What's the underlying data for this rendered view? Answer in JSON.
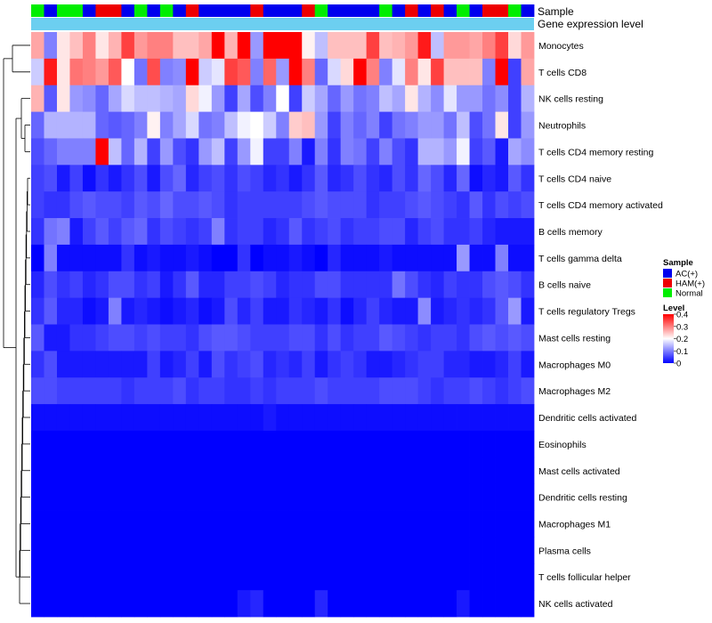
{
  "chart_data": {
    "type": "heatmap",
    "title": "",
    "annotation_labels": {
      "sample": "Sample",
      "expression": "Gene expression level"
    },
    "rows": [
      "Monocytes",
      "T cells CD8",
      "NK cells resting",
      "Neutrophils",
      "T cells CD4 memory resting",
      "T cells CD4 naive",
      "T cells CD4 memory activated",
      "B cells memory",
      "T cells gamma delta",
      "B cells naive",
      "T cells regulatory  Tregs",
      "Mast cells resting",
      "Macrophages M0",
      "Macrophages M2",
      "Dendritic cells activated",
      "Eosinophils",
      "Mast cells activated",
      "Dendritic cells resting",
      "Macrophages M1",
      "Plasma cells",
      "T cells follicular helper",
      "NK cells activated"
    ],
    "samples": [
      "N",
      "A",
      "N",
      "N",
      "A",
      "H",
      "H",
      "A",
      "N",
      "A",
      "N",
      "A",
      "H",
      "A",
      "A",
      "A",
      "A",
      "H",
      "A",
      "A",
      "A",
      "H",
      "N",
      "A",
      "A",
      "A",
      "A",
      "N",
      "A",
      "H",
      "A",
      "H",
      "A",
      "N",
      "A",
      "H",
      "H",
      "N",
      "A"
    ],
    "values": [
      [
        0.27,
        0.1,
        0.22,
        0.25,
        0.3,
        0.22,
        0.26,
        0.35,
        0.28,
        0.3,
        0.3,
        0.25,
        0.25,
        0.27,
        0.41,
        0.26,
        0.44,
        0.12,
        0.45,
        0.45,
        0.45,
        0.21,
        0.15,
        0.25,
        0.25,
        0.25,
        0.35,
        0.25,
        0.26,
        0.28,
        0.38,
        0.15,
        0.28,
        0.28,
        0.27,
        0.3,
        0.35,
        0.23,
        0.28
      ],
      [
        0.16,
        0.38,
        0.22,
        0.31,
        0.3,
        0.28,
        0.33,
        0.2,
        0.09,
        0.34,
        0.1,
        0.11,
        0.42,
        0.16,
        0.18,
        0.35,
        0.33,
        0.1,
        0.32,
        0.12,
        0.42,
        0.3,
        0.08,
        0.17,
        0.23,
        0.43,
        0.3,
        0.1,
        0.18,
        0.3,
        0.22,
        0.35,
        0.25,
        0.25,
        0.25,
        0.1,
        0.41,
        0.05,
        0.27
      ],
      [
        0.26,
        0.07,
        0.22,
        0.12,
        0.11,
        0.08,
        0.13,
        0.17,
        0.15,
        0.15,
        0.14,
        0.13,
        0.23,
        0.19,
        0.12,
        0.05,
        0.13,
        0.06,
        0.1,
        0.2,
        0.05,
        0.16,
        0.13,
        0.08,
        0.12,
        0.09,
        0.1,
        0.15,
        0.13,
        0.22,
        0.14,
        0.11,
        0.18,
        0.12,
        0.12,
        0.09,
        0.11,
        0.05,
        0.14
      ],
      [
        0.08,
        0.14,
        0.14,
        0.14,
        0.14,
        0.08,
        0.07,
        0.08,
        0.1,
        0.21,
        0.1,
        0.13,
        0.17,
        0.09,
        0.1,
        0.15,
        0.19,
        0.2,
        0.16,
        0.1,
        0.24,
        0.25,
        0.12,
        0.05,
        0.1,
        0.08,
        0.1,
        0.05,
        0.09,
        0.1,
        0.12,
        0.12,
        0.09,
        0.15,
        0.06,
        0.09,
        0.22,
        0.05,
        0.12
      ],
      [
        0.06,
        0.08,
        0.1,
        0.1,
        0.1,
        0.45,
        0.15,
        0.08,
        0.14,
        0.05,
        0.12,
        0.06,
        0.04,
        0.12,
        0.15,
        0.05,
        0.12,
        0.19,
        0.05,
        0.05,
        0.1,
        0.02,
        0.1,
        0.04,
        0.1,
        0.09,
        0.05,
        0.1,
        0.06,
        0.04,
        0.14,
        0.14,
        0.12,
        0.19,
        0.05,
        0.07,
        0.02,
        0.13,
        0.11
      ],
      [
        0.05,
        0.06,
        0.02,
        0.05,
        0.01,
        0.04,
        0.02,
        0.04,
        0.06,
        0.02,
        0.06,
        0.08,
        0.03,
        0.05,
        0.06,
        0.04,
        0.06,
        0.05,
        0.03,
        0.04,
        0.02,
        0.04,
        0.07,
        0.03,
        0.04,
        0.06,
        0.04,
        0.03,
        0.06,
        0.04,
        0.08,
        0.06,
        0.03,
        0.08,
        0.01,
        0.03,
        0.02,
        0.07,
        0.04
      ],
      [
        0.05,
        0.04,
        0.04,
        0.06,
        0.07,
        0.06,
        0.06,
        0.05,
        0.07,
        0.06,
        0.08,
        0.06,
        0.06,
        0.07,
        0.06,
        0.04,
        0.05,
        0.05,
        0.05,
        0.05,
        0.05,
        0.06,
        0.07,
        0.06,
        0.06,
        0.06,
        0.04,
        0.05,
        0.05,
        0.06,
        0.07,
        0.06,
        0.05,
        0.04,
        0.07,
        0.04,
        0.06,
        0.05,
        0.06
      ],
      [
        0.04,
        0.09,
        0.1,
        0.02,
        0.05,
        0.07,
        0.05,
        0.07,
        0.08,
        0.04,
        0.06,
        0.05,
        0.04,
        0.05,
        0.1,
        0.04,
        0.05,
        0.05,
        0.03,
        0.04,
        0.07,
        0.04,
        0.05,
        0.06,
        0.04,
        0.05,
        0.05,
        0.06,
        0.06,
        0.03,
        0.05,
        0.06,
        0.04,
        0.04,
        0.05,
        0.03,
        0.02,
        0.02,
        0.02
      ],
      [
        0.0,
        0.1,
        0.01,
        0.01,
        0.01,
        0.01,
        0.01,
        0.04,
        0.01,
        0.02,
        0.01,
        0.01,
        0.02,
        0.01,
        0.0,
        0.0,
        0.04,
        0.0,
        0.01,
        0.01,
        0.02,
        0.01,
        0.0,
        0.03,
        0.01,
        0.01,
        0.01,
        0.02,
        0.01,
        0.01,
        0.01,
        0.01,
        0.01,
        0.12,
        0.01,
        0.01,
        0.1,
        0.01,
        0.01
      ],
      [
        0.03,
        0.06,
        0.04,
        0.05,
        0.03,
        0.04,
        0.06,
        0.06,
        0.04,
        0.05,
        0.02,
        0.04,
        0.07,
        0.03,
        0.03,
        0.05,
        0.05,
        0.06,
        0.05,
        0.03,
        0.04,
        0.04,
        0.06,
        0.06,
        0.04,
        0.04,
        0.04,
        0.04,
        0.09,
        0.06,
        0.04,
        0.03,
        0.05,
        0.04,
        0.04,
        0.06,
        0.07,
        0.06,
        0.04
      ],
      [
        0.04,
        0.07,
        0.03,
        0.03,
        0.01,
        0.02,
        0.1,
        0.02,
        0.03,
        0.02,
        0.01,
        0.02,
        0.03,
        0.01,
        0.02,
        0.06,
        0.03,
        0.05,
        0.02,
        0.02,
        0.04,
        0.03,
        0.02,
        0.04,
        0.01,
        0.03,
        0.05,
        0.03,
        0.02,
        0.02,
        0.11,
        0.02,
        0.03,
        0.04,
        0.03,
        0.04,
        0.07,
        0.12,
        0.02
      ],
      [
        0.07,
        0.02,
        0.02,
        0.04,
        0.04,
        0.05,
        0.06,
        0.06,
        0.05,
        0.06,
        0.05,
        0.05,
        0.04,
        0.06,
        0.07,
        0.07,
        0.06,
        0.05,
        0.05,
        0.05,
        0.06,
        0.06,
        0.04,
        0.06,
        0.04,
        0.05,
        0.05,
        0.07,
        0.06,
        0.05,
        0.04,
        0.05,
        0.05,
        0.04,
        0.06,
        0.07,
        0.06,
        0.07,
        0.06
      ],
      [
        0.04,
        0.06,
        0.02,
        0.02,
        0.02,
        0.02,
        0.02,
        0.02,
        0.02,
        0.05,
        0.02,
        0.03,
        0.05,
        0.02,
        0.06,
        0.04,
        0.05,
        0.06,
        0.03,
        0.04,
        0.03,
        0.05,
        0.02,
        0.04,
        0.05,
        0.04,
        0.02,
        0.02,
        0.03,
        0.04,
        0.05,
        0.05,
        0.03,
        0.03,
        0.02,
        0.02,
        0.03,
        0.05,
        0.02
      ],
      [
        0.06,
        0.06,
        0.05,
        0.05,
        0.05,
        0.05,
        0.05,
        0.04,
        0.05,
        0.05,
        0.05,
        0.06,
        0.04,
        0.05,
        0.05,
        0.04,
        0.04,
        0.05,
        0.04,
        0.05,
        0.05,
        0.05,
        0.06,
        0.05,
        0.05,
        0.05,
        0.05,
        0.06,
        0.06,
        0.06,
        0.05,
        0.04,
        0.05,
        0.05,
        0.06,
        0.05,
        0.04,
        0.05,
        0.06
      ],
      [
        0.01,
        0.01,
        0.01,
        0.01,
        0.01,
        0.01,
        0.01,
        0.01,
        0.01,
        0.01,
        0.01,
        0.01,
        0.01,
        0.01,
        0.01,
        0.01,
        0.01,
        0.01,
        0.02,
        0.01,
        0.01,
        0.01,
        0.01,
        0.01,
        0.01,
        0.01,
        0.01,
        0.01,
        0.01,
        0.01,
        0.01,
        0.01,
        0.01,
        0.01,
        0.01,
        0.01,
        0.01,
        0.01,
        0.01
      ],
      [
        0.0,
        0.0,
        0.0,
        0.0,
        0.0,
        0.0,
        0.0,
        0.0,
        0.0,
        0.0,
        0.0,
        0.0,
        0.0,
        0.0,
        0.0,
        0.0,
        0.0,
        0.0,
        0.0,
        0.0,
        0.0,
        0.0,
        0.0,
        0.0,
        0.0,
        0.0,
        0.0,
        0.0,
        0.0,
        0.0,
        0.0,
        0.0,
        0.0,
        0.0,
        0.0,
        0.0,
        0.0,
        0.0,
        0.0
      ],
      [
        0.0,
        0.0,
        0.0,
        0.0,
        0.0,
        0.0,
        0.0,
        0.0,
        0.0,
        0.0,
        0.0,
        0.0,
        0.0,
        0.0,
        0.0,
        0.0,
        0.0,
        0.0,
        0.0,
        0.0,
        0.0,
        0.0,
        0.0,
        0.0,
        0.0,
        0.0,
        0.0,
        0.0,
        0.0,
        0.0,
        0.0,
        0.0,
        0.0,
        0.0,
        0.0,
        0.0,
        0.0,
        0.0,
        0.0
      ],
      [
        0.0,
        0.0,
        0.0,
        0.0,
        0.0,
        0.0,
        0.0,
        0.0,
        0.0,
        0.0,
        0.0,
        0.0,
        0.0,
        0.0,
        0.0,
        0.0,
        0.0,
        0.0,
        0.0,
        0.0,
        0.0,
        0.0,
        0.0,
        0.0,
        0.0,
        0.0,
        0.0,
        0.0,
        0.0,
        0.0,
        0.0,
        0.0,
        0.0,
        0.0,
        0.0,
        0.0,
        0.0,
        0.0,
        0.0
      ],
      [
        0.0,
        0.0,
        0.0,
        0.0,
        0.0,
        0.0,
        0.0,
        0.0,
        0.0,
        0.0,
        0.0,
        0.0,
        0.0,
        0.0,
        0.0,
        0.0,
        0.0,
        0.0,
        0.0,
        0.0,
        0.0,
        0.0,
        0.0,
        0.0,
        0.0,
        0.0,
        0.0,
        0.0,
        0.0,
        0.0,
        0.0,
        0.0,
        0.0,
        0.0,
        0.0,
        0.0,
        0.0,
        0.0,
        0.0
      ],
      [
        0.0,
        0.0,
        0.0,
        0.0,
        0.0,
        0.0,
        0.0,
        0.0,
        0.0,
        0.0,
        0.0,
        0.0,
        0.0,
        0.0,
        0.0,
        0.0,
        0.0,
        0.0,
        0.0,
        0.0,
        0.0,
        0.0,
        0.0,
        0.0,
        0.0,
        0.0,
        0.0,
        0.0,
        0.0,
        0.0,
        0.0,
        0.0,
        0.0,
        0.0,
        0.0,
        0.0,
        0.0,
        0.0,
        0.0
      ],
      [
        0.0,
        0.0,
        0.0,
        0.0,
        0.0,
        0.0,
        0.0,
        0.0,
        0.0,
        0.0,
        0.0,
        0.0,
        0.0,
        0.0,
        0.0,
        0.0,
        0.0,
        0.0,
        0.0,
        0.0,
        0.0,
        0.0,
        0.0,
        0.0,
        0.0,
        0.0,
        0.0,
        0.0,
        0.0,
        0.0,
        0.0,
        0.0,
        0.0,
        0.0,
        0.0,
        0.0,
        0.0,
        0.0,
        0.0
      ],
      [
        0.0,
        0.0,
        0.0,
        0.0,
        0.0,
        0.0,
        0.0,
        0.0,
        0.0,
        0.0,
        0.0,
        0.0,
        0.0,
        0.0,
        0.0,
        0.0,
        0.02,
        0.03,
        0.0,
        0.0,
        0.0,
        0.0,
        0.03,
        0.0,
        0.0,
        0.0,
        0.0,
        0.0,
        0.0,
        0.0,
        0.0,
        0.0,
        0.0,
        0.02,
        0.0,
        0.0,
        0.0,
        0.0,
        0.0
      ]
    ],
    "legend": {
      "sample": {
        "title": "Sample",
        "entries": [
          {
            "key": "A",
            "label": "AC(+)",
            "color": "#0000EE"
          },
          {
            "key": "H",
            "label": "HAM(+)",
            "color": "#EE0000"
          },
          {
            "key": "N",
            "label": "Normal",
            "color": "#00EE00"
          }
        ]
      },
      "level": {
        "title": "Level",
        "ticks": [
          "0.4",
          "0.3",
          "0.2",
          "0.1",
          "0"
        ],
        "range": [
          0,
          0.4
        ],
        "colors": {
          "low": "#0000FF",
          "mid": "#FFFFFF",
          "high": "#FF0000"
        }
      }
    },
    "expression_bar_color": "#6CCFF0",
    "dendrogram_color": "#000000"
  }
}
